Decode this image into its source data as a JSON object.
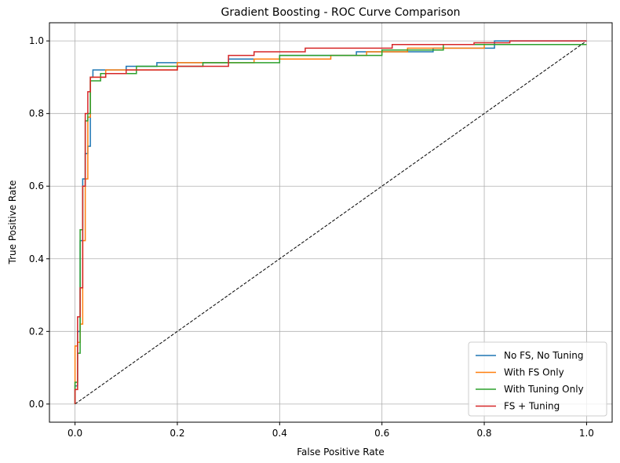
{
  "chart_data": {
    "type": "line",
    "title": "Gradient Boosting - ROC Curve Comparison",
    "xlabel": "False Positive Rate",
    "ylabel": "True Positive Rate",
    "xlim": [
      -0.05,
      1.05
    ],
    "ylim": [
      -0.05,
      1.05
    ],
    "xticks": [
      "0.0",
      "0.2",
      "0.4",
      "0.6",
      "0.8",
      "1.0"
    ],
    "yticks": [
      "0.0",
      "0.2",
      "0.4",
      "0.6",
      "0.8",
      "1.0"
    ],
    "grid": true,
    "legend_position": "lower-right",
    "diagonal": {
      "x": [
        0,
        1
      ],
      "y": [
        0,
        1
      ],
      "color": "#000000",
      "style": "dashed"
    },
    "series": [
      {
        "name": "No FS, No Tuning",
        "color": "#1f77b4",
        "x": [
          0,
          0,
          0.005,
          0.005,
          0.01,
          0.01,
          0.015,
          0.015,
          0.02,
          0.02,
          0.025,
          0.025,
          0.03,
          0.03,
          0.035,
          0.035,
          0.1,
          0.1,
          0.16,
          0.16,
          0.3,
          0.3,
          0.4,
          0.4,
          0.55,
          0.55,
          0.7,
          0.7,
          0.82,
          0.82,
          1.0
        ],
        "y": [
          0,
          0.05,
          0.05,
          0.2,
          0.2,
          0.45,
          0.45,
          0.62,
          0.62,
          0.69,
          0.69,
          0.71,
          0.71,
          0.9,
          0.9,
          0.92,
          0.92,
          0.93,
          0.93,
          0.94,
          0.94,
          0.95,
          0.95,
          0.96,
          0.96,
          0.97,
          0.97,
          0.98,
          0.98,
          1.0,
          1.0
        ]
      },
      {
        "name": "With FS Only",
        "color": "#ff7f0e",
        "x": [
          0,
          0,
          0.005,
          0.005,
          0.01,
          0.01,
          0.015,
          0.015,
          0.02,
          0.02,
          0.025,
          0.025,
          0.03,
          0.03,
          0.06,
          0.06,
          0.2,
          0.2,
          0.35,
          0.35,
          0.5,
          0.5,
          0.57,
          0.57,
          0.65,
          0.65,
          0.8,
          0.8,
          1.0
        ],
        "y": [
          0,
          0.16,
          0.16,
          0.17,
          0.17,
          0.22,
          0.22,
          0.45,
          0.45,
          0.62,
          0.62,
          0.79,
          0.79,
          0.9,
          0.9,
          0.92,
          0.92,
          0.94,
          0.94,
          0.95,
          0.95,
          0.96,
          0.96,
          0.97,
          0.97,
          0.98,
          0.98,
          0.99,
          0.99
        ]
      },
      {
        "name": "With Tuning Only",
        "color": "#2ca02c",
        "x": [
          0,
          0,
          0.005,
          0.005,
          0.01,
          0.01,
          0.015,
          0.015,
          0.02,
          0.02,
          0.025,
          0.025,
          0.03,
          0.03,
          0.05,
          0.05,
          0.12,
          0.12,
          0.25,
          0.25,
          0.4,
          0.4,
          0.6,
          0.6,
          0.72,
          0.72,
          1.0
        ],
        "y": [
          0,
          0.06,
          0.06,
          0.14,
          0.14,
          0.48,
          0.48,
          0.6,
          0.6,
          0.78,
          0.78,
          0.8,
          0.8,
          0.89,
          0.89,
          0.91,
          0.91,
          0.93,
          0.93,
          0.94,
          0.94,
          0.96,
          0.96,
          0.975,
          0.975,
          0.99,
          0.99
        ]
      },
      {
        "name": "FS + Tuning",
        "color": "#d62728",
        "x": [
          0,
          0,
          0.005,
          0.005,
          0.01,
          0.01,
          0.015,
          0.015,
          0.02,
          0.02,
          0.025,
          0.025,
          0.03,
          0.03,
          0.06,
          0.06,
          0.1,
          0.1,
          0.2,
          0.2,
          0.3,
          0.3,
          0.35,
          0.35,
          0.45,
          0.45,
          0.62,
          0.62,
          0.78,
          0.78,
          0.85,
          0.85,
          1.0
        ],
        "y": [
          0,
          0.04,
          0.04,
          0.24,
          0.24,
          0.32,
          0.32,
          0.6,
          0.6,
          0.8,
          0.8,
          0.86,
          0.86,
          0.9,
          0.9,
          0.91,
          0.91,
          0.92,
          0.92,
          0.93,
          0.93,
          0.96,
          0.96,
          0.97,
          0.97,
          0.98,
          0.98,
          0.99,
          0.99,
          0.995,
          0.995,
          1.0,
          1.0
        ]
      }
    ]
  }
}
